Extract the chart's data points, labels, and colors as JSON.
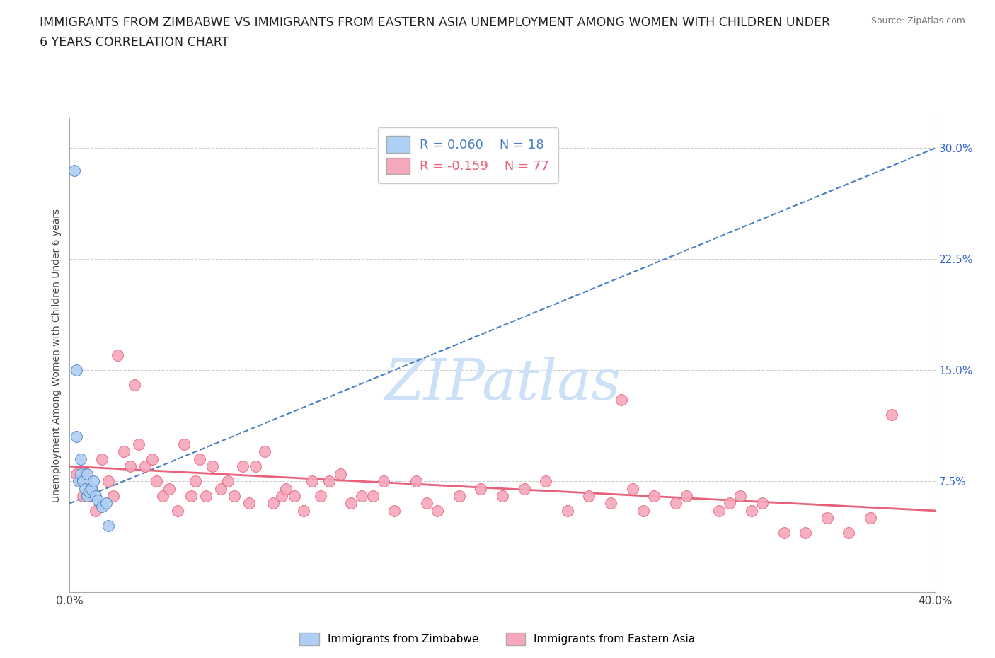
{
  "title_line1": "IMMIGRANTS FROM ZIMBABWE VS IMMIGRANTS FROM EASTERN ASIA UNEMPLOYMENT AMONG WOMEN WITH CHILDREN UNDER",
  "title_line2": "6 YEARS CORRELATION CHART",
  "source": "Source: ZipAtlas.com",
  "ylabel": "Unemployment Among Women with Children Under 6 years",
  "xlim": [
    0.0,
    0.4
  ],
  "ylim": [
    0.0,
    0.32
  ],
  "xticks": [
    0.0,
    0.05,
    0.1,
    0.15,
    0.2,
    0.25,
    0.3,
    0.35,
    0.4
  ],
  "xtick_labels": [
    "0.0%",
    "",
    "",
    "",
    "",
    "",
    "",
    "",
    "40.0%"
  ],
  "ytick_positions": [
    0.075,
    0.15,
    0.225,
    0.3
  ],
  "ytick_labels": [
    "7.5%",
    "15.0%",
    "22.5%",
    "30.0%"
  ],
  "R_zimbabwe": 0.06,
  "N_zimbabwe": 18,
  "R_eastern_asia": -0.159,
  "N_eastern_asia": 77,
  "color_zimbabwe": "#aecff5",
  "color_eastern_asia": "#f5a8bc",
  "line_color_zimbabwe": "#4a7fc1",
  "line_color_eastern_asia": "#e8607a",
  "watermark": "ZIPatlas",
  "watermark_color": "#cce0f8",
  "zimbabwe_x": [
    0.002,
    0.003,
    0.003,
    0.004,
    0.005,
    0.005,
    0.006,
    0.007,
    0.008,
    0.008,
    0.009,
    0.01,
    0.011,
    0.012,
    0.013,
    0.015,
    0.017,
    0.018
  ],
  "zimbabwe_y": [
    0.285,
    0.105,
    0.15,
    0.075,
    0.08,
    0.09,
    0.075,
    0.07,
    0.065,
    0.08,
    0.068,
    0.07,
    0.075,
    0.065,
    0.062,
    0.058,
    0.06,
    0.045
  ],
  "zim_trend_x": [
    0.0,
    0.4
  ],
  "zim_trend_y": [
    0.06,
    0.3
  ],
  "ea_trend_x": [
    0.0,
    0.4
  ],
  "ea_trend_y": [
    0.085,
    0.055
  ],
  "eastern_asia_x": [
    0.003,
    0.005,
    0.006,
    0.007,
    0.008,
    0.009,
    0.01,
    0.012,
    0.015,
    0.018,
    0.02,
    0.022,
    0.025,
    0.028,
    0.03,
    0.032,
    0.035,
    0.038,
    0.04,
    0.043,
    0.046,
    0.05,
    0.053,
    0.056,
    0.058,
    0.06,
    0.063,
    0.066,
    0.07,
    0.073,
    0.076,
    0.08,
    0.083,
    0.086,
    0.09,
    0.094,
    0.098,
    0.1,
    0.104,
    0.108,
    0.112,
    0.116,
    0.12,
    0.125,
    0.13,
    0.135,
    0.14,
    0.145,
    0.15,
    0.16,
    0.165,
    0.17,
    0.18,
    0.19,
    0.2,
    0.21,
    0.22,
    0.23,
    0.24,
    0.25,
    0.255,
    0.26,
    0.265,
    0.27,
    0.28,
    0.285,
    0.3,
    0.305,
    0.31,
    0.315,
    0.32,
    0.33,
    0.34,
    0.35,
    0.36,
    0.37,
    0.38
  ],
  "eastern_asia_y": [
    0.08,
    0.075,
    0.065,
    0.08,
    0.075,
    0.065,
    0.07,
    0.055,
    0.09,
    0.075,
    0.065,
    0.16,
    0.095,
    0.085,
    0.14,
    0.1,
    0.085,
    0.09,
    0.075,
    0.065,
    0.07,
    0.055,
    0.1,
    0.065,
    0.075,
    0.09,
    0.065,
    0.085,
    0.07,
    0.075,
    0.065,
    0.085,
    0.06,
    0.085,
    0.095,
    0.06,
    0.065,
    0.07,
    0.065,
    0.055,
    0.075,
    0.065,
    0.075,
    0.08,
    0.06,
    0.065,
    0.065,
    0.075,
    0.055,
    0.075,
    0.06,
    0.055,
    0.065,
    0.07,
    0.065,
    0.07,
    0.075,
    0.055,
    0.065,
    0.06,
    0.13,
    0.07,
    0.055,
    0.065,
    0.06,
    0.065,
    0.055,
    0.06,
    0.065,
    0.055,
    0.06,
    0.04,
    0.04,
    0.05,
    0.04,
    0.05,
    0.12
  ]
}
